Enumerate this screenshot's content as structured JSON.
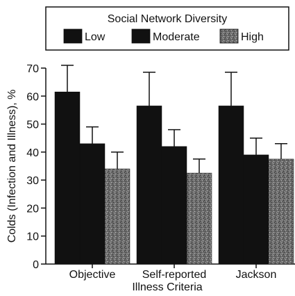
{
  "chart_data": {
    "type": "bar",
    "title": "",
    "legend_title": "Social Network Diversity",
    "legend_placement": "top",
    "xlabel": "Illness Criteria",
    "ylabel": "Colds (Infection and Illness), %",
    "ylim": [
      0,
      70
    ],
    "yticks": [
      0,
      10,
      20,
      30,
      40,
      50,
      60,
      70
    ],
    "ytick_labels": [
      "0",
      "10",
      "20",
      "30",
      "40",
      "50",
      "60",
      "70"
    ],
    "grid": false,
    "error_bars": true,
    "categories": [
      "Objective",
      "Self-reported",
      "Jackson"
    ],
    "series": [
      {
        "name": "Low",
        "values": [
          61.5,
          56.5,
          56.5
        ],
        "errors": [
          9.5,
          12,
          12
        ],
        "color": "#111111",
        "pattern": "solid"
      },
      {
        "name": "Moderate",
        "values": [
          43,
          42,
          39
        ],
        "errors": [
          6,
          6,
          6
        ],
        "color": "#111111",
        "pattern": "solid"
      },
      {
        "name": "High",
        "values": [
          34,
          32.5,
          37.5
        ],
        "errors": [
          6,
          5,
          5.5
        ],
        "color": "#555555",
        "pattern": "speckled"
      }
    ]
  }
}
